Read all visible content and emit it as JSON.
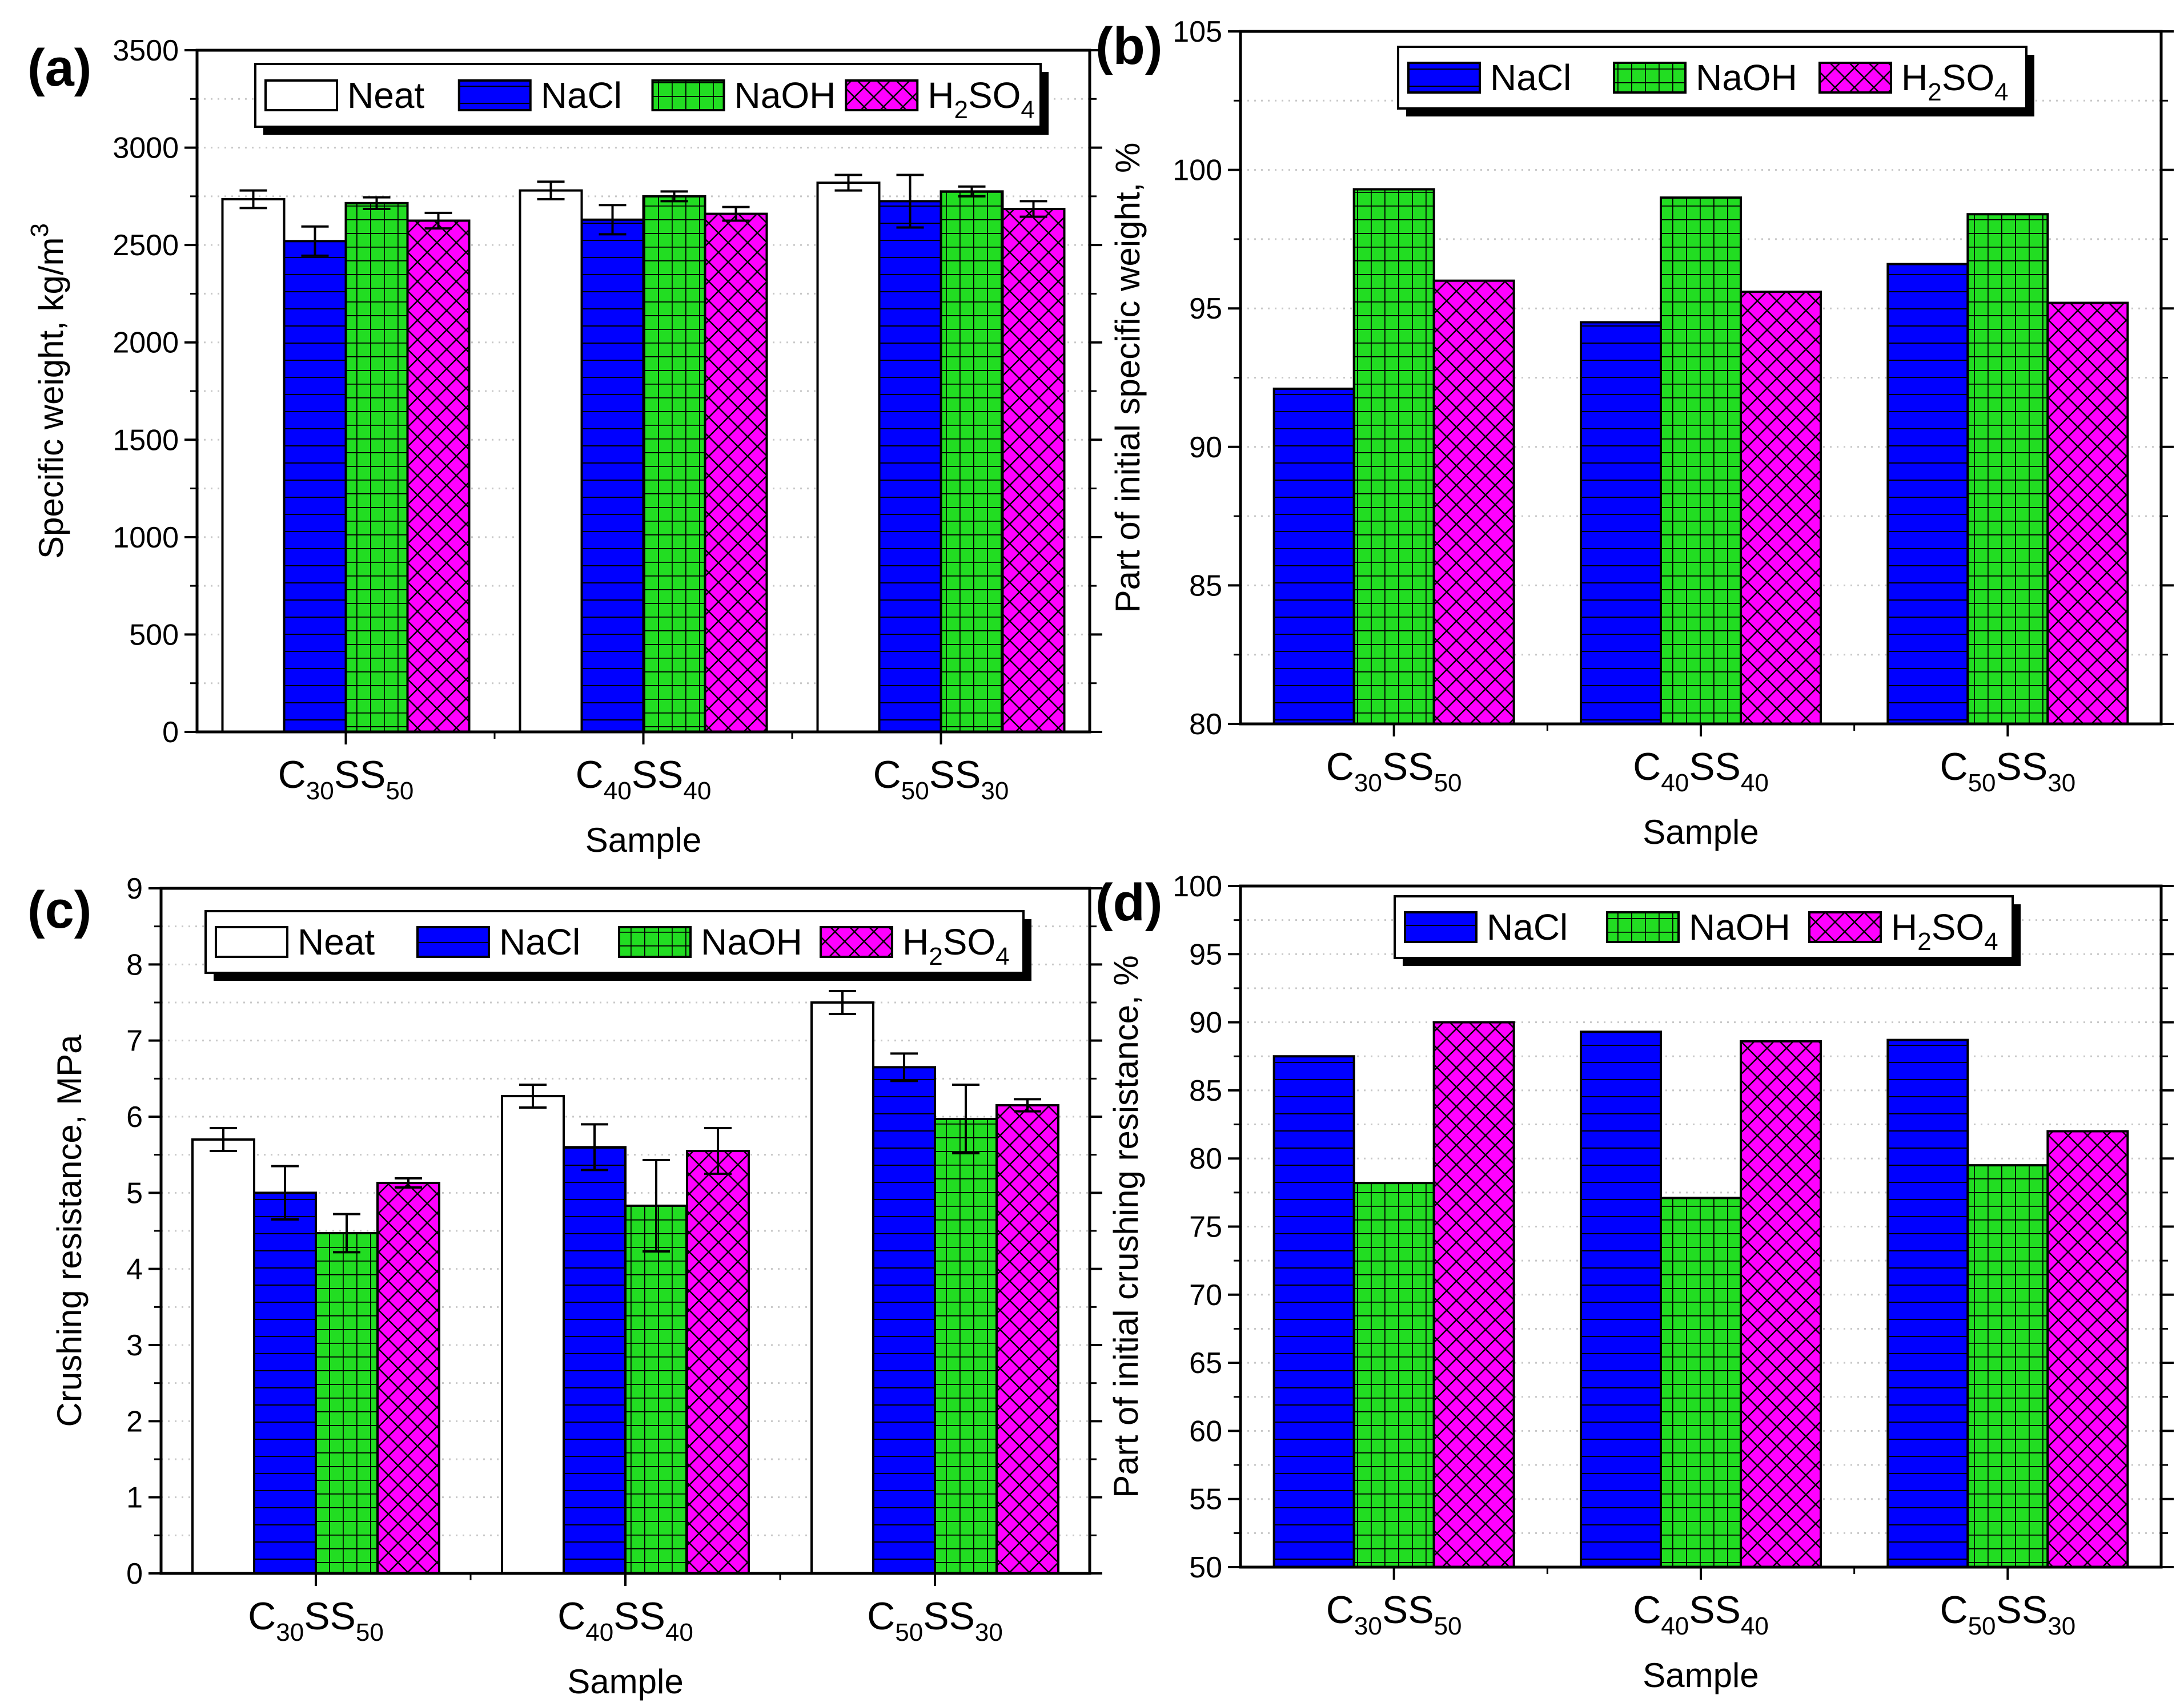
{
  "colors": {
    "Neat": "#ffffff",
    "NaCl": "#0000ff",
    "NaOH": "#22dd22",
    "H2SO4": "#ff00ff"
  },
  "chart_data": [
    {
      "panel": "(a)",
      "type": "bar",
      "xlabel": "Sample",
      "ylabel": "Specific weight, kg/m3",
      "ylabel_parts": {
        "text": "Specific weight, kg/m",
        "sup": "3"
      },
      "ylim": [
        0,
        3500
      ],
      "yticks": [
        0,
        500,
        1000,
        1500,
        2000,
        2500,
        3000,
        3500
      ],
      "categories": [
        {
          "main": "C",
          "sub1": "30",
          "mid": "SS",
          "sub2": "50"
        },
        {
          "main": "C",
          "sub1": "40",
          "mid": "SS",
          "sub2": "40"
        },
        {
          "main": "C",
          "sub1": "50",
          "mid": "SS",
          "sub2": "30"
        }
      ],
      "legend": [
        {
          "key": "Neat",
          "main": "Neat",
          "sub": "",
          "tail": ""
        },
        {
          "key": "NaCl",
          "main": "NaCl",
          "sub": "",
          "tail": ""
        },
        {
          "key": "NaOH",
          "main": "NaOH",
          "sub": "",
          "tail": ""
        },
        {
          "key": "H2SO4",
          "main": "H",
          "sub": "2",
          "tail": "SO",
          "sub2": "4"
        }
      ],
      "series": [
        {
          "key": "Neat",
          "values": [
            2735,
            2780,
            2820
          ],
          "errors": [
            45,
            45,
            40
          ]
        },
        {
          "key": "NaCl",
          "values": [
            2520,
            2630,
            2725
          ],
          "errors": [
            75,
            75,
            135
          ]
        },
        {
          "key": "NaOH",
          "values": [
            2715,
            2750,
            2775
          ],
          "errors": [
            30,
            25,
            25
          ]
        },
        {
          "key": "H2SO4",
          "values": [
            2625,
            2660,
            2685
          ],
          "errors": [
            40,
            35,
            40
          ]
        }
      ]
    },
    {
      "panel": "(b)",
      "type": "bar",
      "xlabel": "Sample",
      "ylabel": "Part of initial specific weight, %",
      "ylim": [
        80,
        105
      ],
      "yticks": [
        80,
        85,
        90,
        95,
        100,
        105
      ],
      "categories": [
        {
          "main": "C",
          "sub1": "30",
          "mid": "SS",
          "sub2": "50"
        },
        {
          "main": "C",
          "sub1": "40",
          "mid": "SS",
          "sub2": "40"
        },
        {
          "main": "C",
          "sub1": "50",
          "mid": "SS",
          "sub2": "30"
        }
      ],
      "legend": [
        {
          "key": "NaCl",
          "main": "NaCl",
          "sub": "",
          "tail": ""
        },
        {
          "key": "NaOH",
          "main": "NaOH",
          "sub": "",
          "tail": ""
        },
        {
          "key": "H2SO4",
          "main": "H",
          "sub": "2",
          "tail": "SO",
          "sub2": "4"
        }
      ],
      "series": [
        {
          "key": "NaCl",
          "values": [
            92.1,
            94.5,
            96.6
          ]
        },
        {
          "key": "NaOH",
          "values": [
            99.3,
            99.0,
            98.4
          ]
        },
        {
          "key": "H2SO4",
          "values": [
            96.0,
            95.6,
            95.2
          ]
        }
      ]
    },
    {
      "panel": "(c)",
      "type": "bar",
      "xlabel": "Sample",
      "ylabel": "Crushing resistance, MPa",
      "ylim": [
        0,
        9
      ],
      "yticks": [
        0,
        1,
        2,
        3,
        4,
        5,
        6,
        7,
        8,
        9
      ],
      "categories": [
        {
          "main": "C",
          "sub1": "30",
          "mid": "SS",
          "sub2": "50"
        },
        {
          "main": "C",
          "sub1": "40",
          "mid": "SS",
          "sub2": "40"
        },
        {
          "main": "C",
          "sub1": "50",
          "mid": "SS",
          "sub2": "30"
        }
      ],
      "legend": [
        {
          "key": "Neat",
          "main": "Neat",
          "sub": "",
          "tail": ""
        },
        {
          "key": "NaCl",
          "main": "NaCl",
          "sub": "",
          "tail": ""
        },
        {
          "key": "NaOH",
          "main": "NaOH",
          "sub": "",
          "tail": ""
        },
        {
          "key": "H2SO4",
          "main": "H",
          "sub": "2",
          "tail": "SO",
          "sub2": "4"
        }
      ],
      "series": [
        {
          "key": "Neat",
          "values": [
            5.7,
            6.27,
            7.5
          ],
          "errors": [
            0.15,
            0.15,
            0.15
          ]
        },
        {
          "key": "NaCl",
          "values": [
            5.0,
            5.6,
            6.65
          ],
          "errors": [
            0.35,
            0.3,
            0.18
          ]
        },
        {
          "key": "NaOH",
          "values": [
            4.47,
            4.83,
            5.97
          ],
          "errors": [
            0.25,
            0.6,
            0.45
          ]
        },
        {
          "key": "H2SO4",
          "values": [
            5.13,
            5.55,
            6.15
          ],
          "errors": [
            0.06,
            0.3,
            0.08
          ]
        }
      ]
    },
    {
      "panel": "(d)",
      "type": "bar",
      "xlabel": "Sample",
      "ylabel": "Part of initial crushing resistance, %",
      "ylim": [
        50,
        100
      ],
      "yticks": [
        50,
        55,
        60,
        65,
        70,
        75,
        80,
        85,
        90,
        95,
        100
      ],
      "categories": [
        {
          "main": "C",
          "sub1": "30",
          "mid": "SS",
          "sub2": "50"
        },
        {
          "main": "C",
          "sub1": "40",
          "mid": "SS",
          "sub2": "40"
        },
        {
          "main": "C",
          "sub1": "50",
          "mid": "SS",
          "sub2": "30"
        }
      ],
      "legend": [
        {
          "key": "NaCl",
          "main": "NaCl",
          "sub": "",
          "tail": ""
        },
        {
          "key": "NaOH",
          "main": "NaOH",
          "sub": "",
          "tail": ""
        },
        {
          "key": "H2SO4",
          "main": "H",
          "sub": "2",
          "tail": "SO",
          "sub2": "4"
        }
      ],
      "series": [
        {
          "key": "NaCl",
          "values": [
            87.5,
            89.3,
            88.7
          ]
        },
        {
          "key": "NaOH",
          "values": [
            78.2,
            77.1,
            79.5
          ]
        },
        {
          "key": "H2SO4",
          "values": [
            90.0,
            88.6,
            82.0
          ]
        }
      ]
    }
  ]
}
